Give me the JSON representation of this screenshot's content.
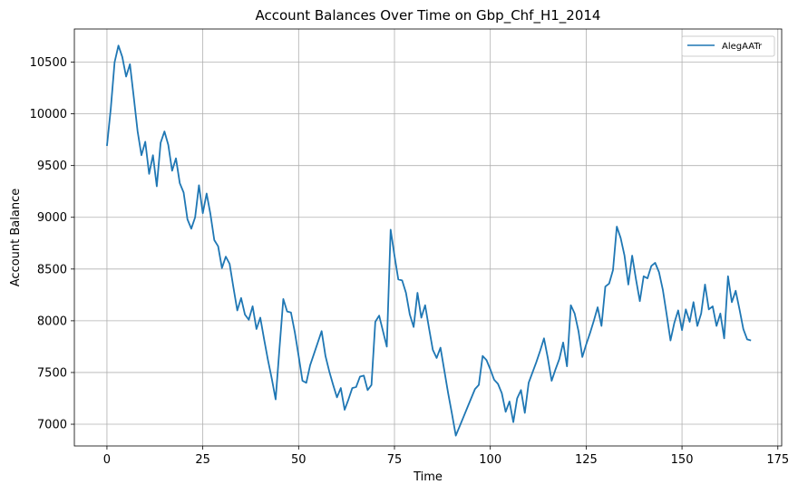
{
  "chart_data": {
    "type": "line",
    "title": "Account Balances Over Time on Gbp_Chf_H1_2014",
    "xlabel": "Time",
    "ylabel": "Account Balance",
    "xlim": [
      -8.5,
      176
    ],
    "ylim": [
      6790,
      10820
    ],
    "xticks": [
      0,
      25,
      50,
      75,
      100,
      125,
      150,
      175
    ],
    "yticks": [
      7000,
      7500,
      8000,
      8500,
      9000,
      9500,
      10000,
      10500
    ],
    "grid": true,
    "legend_position": "top-right",
    "colors": {
      "line": "#1f77b4",
      "grid": "#b0b0b0",
      "frame": "#000000"
    },
    "series": [
      {
        "name": "AlegAATr",
        "values": [
          9690,
          10050,
          10500,
          10660,
          10550,
          10360,
          10480,
          10160,
          9830,
          9600,
          9730,
          9420,
          9600,
          9300,
          9720,
          9830,
          9700,
          9450,
          9570,
          9330,
          9240,
          8980,
          8890,
          9000,
          9310,
          9040,
          9230,
          9030,
          8780,
          8720,
          8510,
          8620,
          8550,
          8320,
          8100,
          8220,
          8060,
          8010,
          8140,
          7920,
          8030,
          7820,
          7620,
          7440,
          7240,
          7730,
          8210,
          8090,
          8080,
          7890,
          7660,
          7420,
          7400,
          7570,
          7680,
          7790,
          7900,
          7660,
          7510,
          7380,
          7260,
          7350,
          7140,
          7240,
          7350,
          7360,
          7460,
          7470,
          7330,
          7380,
          7990,
          8050,
          7900,
          7750,
          8880,
          8630,
          8400,
          8390,
          8270,
          8060,
          7940,
          8270,
          8030,
          8150,
          7930,
          7720,
          7640,
          7740,
          7520,
          7300,
          7100,
          6890,
          6980,
          7070,
          7160,
          7250,
          7340,
          7380,
          7660,
          7620,
          7530,
          7430,
          7390,
          7300,
          7120,
          7220,
          7020,
          7250,
          7330,
          7110,
          7400,
          7500,
          7600,
          7710,
          7830,
          7640,
          7420,
          7530,
          7630,
          7790,
          7560,
          8150,
          8070,
          7900,
          7650,
          7770,
          7880,
          8000,
          8130,
          7950,
          8330,
          8360,
          8490,
          8910,
          8800,
          8630,
          8350,
          8630,
          8400,
          8190,
          8430,
          8410,
          8530,
          8560,
          8470,
          8300,
          8060,
          7810,
          7980,
          8100,
          7910,
          8110,
          7990,
          8180,
          7950,
          8070,
          8350,
          8110,
          8140,
          7950,
          8070,
          7830,
          8430,
          8180,
          8290,
          8110,
          7920,
          7820,
          7810
        ]
      }
    ]
  }
}
